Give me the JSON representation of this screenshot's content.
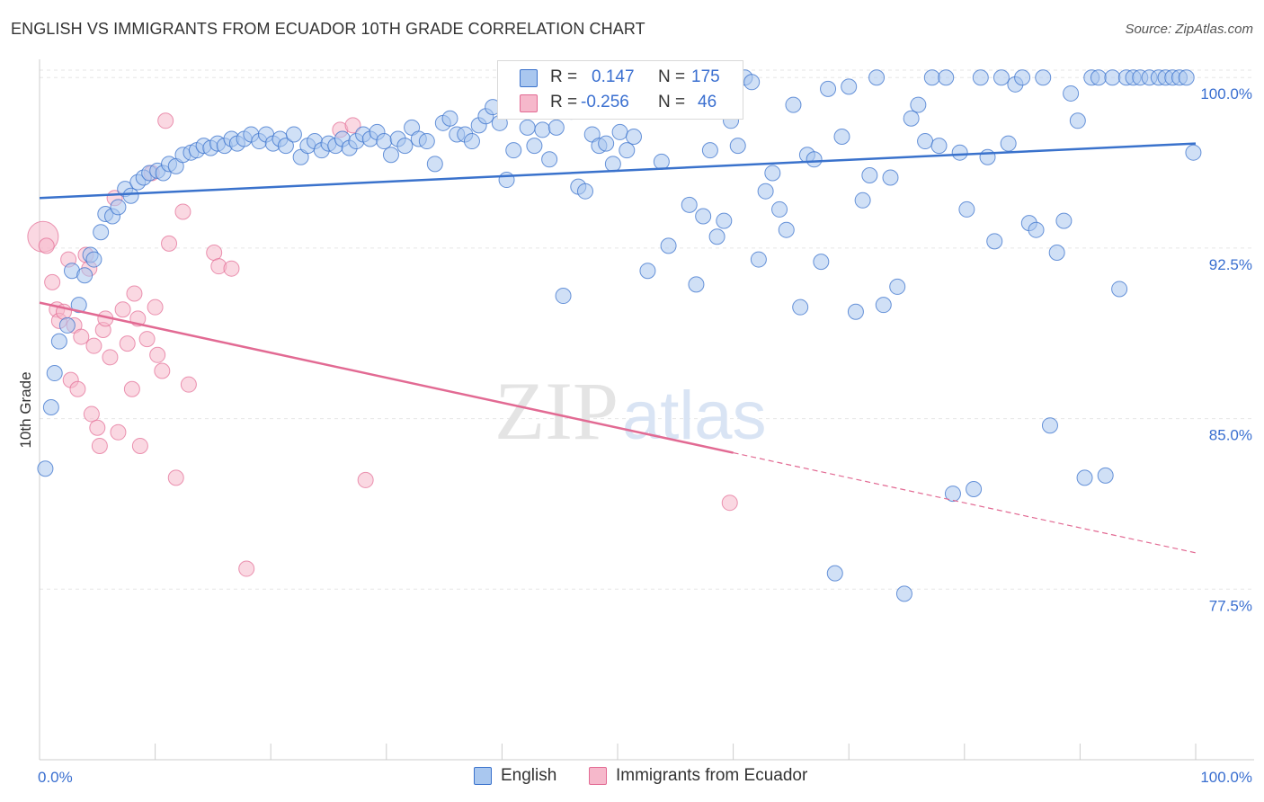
{
  "header": {
    "title": "ENGLISH VS IMMIGRANTS FROM ECUADOR 10TH GRADE CORRELATION CHART",
    "source": "Source: ZipAtlas.com"
  },
  "watermark": {
    "zip": "ZIP",
    "atlas": "atlas"
  },
  "legend": {
    "rows": [
      {
        "r_label": "R =",
        "r_value": "0.147",
        "n_label": "N =",
        "n_value": "175",
        "color": "#a9c7ef"
      },
      {
        "r_label": "R =",
        "r_value": "-0.256",
        "n_label": "N =",
        "n_value": "46",
        "color": "#f6b8cb"
      }
    ]
  },
  "bottom_legend": {
    "items": [
      {
        "label": "English",
        "color": "#a9c7ef"
      },
      {
        "label": "Immigrants from Ecuador",
        "color": "#f6b8cb"
      }
    ]
  },
  "chart_data": {
    "type": "scatter",
    "title": "ENGLISH VS IMMIGRANTS FROM ECUADOR 10TH GRADE CORRELATION CHART",
    "xlabel": "",
    "ylabel": "10th Grade",
    "xlim": [
      0,
      100
    ],
    "ylim": [
      70,
      100.8
    ],
    "x_tick_labels": [
      "0.0%",
      "100.0%"
    ],
    "y_ticks": [
      77.5,
      85.0,
      92.5,
      100.0
    ],
    "y_tick_labels": [
      "77.5%",
      "85.0%",
      "92.5%",
      "100.0%"
    ],
    "grid": true,
    "legend_position": "top-center",
    "colors": {
      "english": "#3a72cc",
      "english_fill": "#a9c7ef",
      "ecuador": "#e26a93",
      "ecuador_fill": "#f6b8cb"
    },
    "series": [
      {
        "name": "English",
        "r": 0.147,
        "n": 175,
        "trend": {
          "x": [
            0,
            100
          ],
          "y": [
            94.7,
            97.1
          ]
        },
        "points": [
          [
            0.5,
            82.8
          ],
          [
            1.0,
            85.5
          ],
          [
            1.3,
            87.0
          ],
          [
            1.7,
            88.4
          ],
          [
            2.4,
            89.1
          ],
          [
            2.8,
            91.5
          ],
          [
            3.4,
            90.0
          ],
          [
            3.9,
            91.3
          ],
          [
            4.4,
            92.2
          ],
          [
            4.7,
            92.0
          ],
          [
            5.3,
            93.2
          ],
          [
            5.7,
            94.0
          ],
          [
            6.3,
            93.9
          ],
          [
            6.8,
            94.3
          ],
          [
            7.4,
            95.1
          ],
          [
            7.9,
            94.8
          ],
          [
            8.5,
            95.4
          ],
          [
            9.0,
            95.6
          ],
          [
            9.5,
            95.8
          ],
          [
            10.2,
            95.9
          ],
          [
            10.7,
            95.8
          ],
          [
            11.2,
            96.2
          ],
          [
            11.8,
            96.1
          ],
          [
            12.4,
            96.6
          ],
          [
            13.1,
            96.7
          ],
          [
            13.6,
            96.8
          ],
          [
            14.2,
            97.0
          ],
          [
            14.8,
            96.9
          ],
          [
            15.4,
            97.1
          ],
          [
            16.0,
            97.0
          ],
          [
            16.6,
            97.3
          ],
          [
            17.1,
            97.1
          ],
          [
            17.7,
            97.3
          ],
          [
            18.3,
            97.5
          ],
          [
            19.0,
            97.2
          ],
          [
            19.6,
            97.5
          ],
          [
            20.2,
            97.1
          ],
          [
            20.8,
            97.3
          ],
          [
            21.3,
            97.0
          ],
          [
            22.0,
            97.5
          ],
          [
            22.6,
            96.5
          ],
          [
            23.2,
            97.0
          ],
          [
            23.8,
            97.2
          ],
          [
            24.4,
            96.8
          ],
          [
            25.0,
            97.1
          ],
          [
            25.6,
            97.0
          ],
          [
            26.2,
            97.3
          ],
          [
            26.8,
            96.9
          ],
          [
            27.4,
            97.2
          ],
          [
            28.0,
            97.5
          ],
          [
            28.6,
            97.3
          ],
          [
            29.2,
            97.6
          ],
          [
            29.8,
            97.2
          ],
          [
            30.4,
            96.6
          ],
          [
            31.0,
            97.3
          ],
          [
            31.6,
            97.0
          ],
          [
            32.2,
            97.8
          ],
          [
            32.8,
            97.3
          ],
          [
            33.5,
            97.2
          ],
          [
            34.2,
            96.2
          ],
          [
            34.9,
            98.0
          ],
          [
            35.5,
            98.2
          ],
          [
            36.1,
            97.5
          ],
          [
            36.8,
            97.5
          ],
          [
            37.4,
            97.2
          ],
          [
            38.0,
            97.9
          ],
          [
            38.6,
            98.3
          ],
          [
            39.2,
            98.7
          ],
          [
            39.8,
            98.0
          ],
          [
            40.4,
            95.5
          ],
          [
            41.0,
            96.8
          ],
          [
            41.6,
            98.8
          ],
          [
            42.2,
            97.8
          ],
          [
            42.8,
            97.0
          ],
          [
            43.5,
            97.7
          ],
          [
            44.1,
            96.4
          ],
          [
            44.7,
            97.8
          ],
          [
            45.3,
            90.4
          ],
          [
            46.0,
            98.5
          ],
          [
            46.6,
            95.2
          ],
          [
            47.2,
            95.0
          ],
          [
            47.8,
            97.5
          ],
          [
            48.4,
            97.0
          ],
          [
            49.0,
            97.1
          ],
          [
            49.6,
            96.2
          ],
          [
            50.2,
            97.6
          ],
          [
            50.8,
            96.8
          ],
          [
            51.4,
            97.4
          ],
          [
            52.0,
            99.2
          ],
          [
            52.6,
            91.5
          ],
          [
            53.2,
            99.0
          ],
          [
            53.8,
            96.3
          ],
          [
            54.4,
            92.6
          ],
          [
            55.0,
            99.5
          ],
          [
            55.6,
            98.8
          ],
          [
            56.2,
            94.4
          ],
          [
            56.8,
            90.9
          ],
          [
            57.4,
            93.9
          ],
          [
            58.0,
            96.8
          ],
          [
            58.6,
            93.0
          ],
          [
            59.2,
            93.7
          ],
          [
            59.8,
            98.1
          ],
          [
            60.4,
            97.0
          ],
          [
            61.0,
            100.0
          ],
          [
            61.6,
            99.8
          ],
          [
            62.2,
            92.0
          ],
          [
            62.8,
            95.0
          ],
          [
            63.4,
            95.8
          ],
          [
            64.0,
            94.2
          ],
          [
            64.6,
            93.3
          ],
          [
            65.2,
            98.8
          ],
          [
            65.8,
            89.9
          ],
          [
            66.4,
            96.6
          ],
          [
            67.0,
            96.4
          ],
          [
            67.6,
            91.9
          ],
          [
            68.2,
            99.5
          ],
          [
            68.8,
            78.2
          ],
          [
            69.4,
            97.4
          ],
          [
            70.0,
            99.6
          ],
          [
            70.6,
            89.7
          ],
          [
            71.2,
            94.6
          ],
          [
            71.8,
            95.7
          ],
          [
            72.4,
            100.0
          ],
          [
            73.0,
            90.0
          ],
          [
            73.6,
            95.6
          ],
          [
            74.2,
            90.8
          ],
          [
            74.8,
            77.3
          ],
          [
            75.4,
            98.2
          ],
          [
            76.0,
            98.8
          ],
          [
            76.6,
            97.2
          ],
          [
            77.2,
            100.0
          ],
          [
            77.8,
            97.0
          ],
          [
            78.4,
            100.0
          ],
          [
            79.0,
            81.7
          ],
          [
            79.6,
            96.7
          ],
          [
            80.2,
            94.2
          ],
          [
            80.8,
            81.9
          ],
          [
            81.4,
            100.0
          ],
          [
            82.0,
            96.5
          ],
          [
            82.6,
            92.8
          ],
          [
            83.2,
            100.0
          ],
          [
            83.8,
            97.1
          ],
          [
            84.4,
            99.7
          ],
          [
            85.0,
            100.0
          ],
          [
            85.6,
            93.6
          ],
          [
            86.2,
            93.3
          ],
          [
            86.8,
            100.0
          ],
          [
            87.4,
            84.7
          ],
          [
            88.0,
            92.3
          ],
          [
            88.6,
            93.7
          ],
          [
            89.2,
            99.3
          ],
          [
            89.8,
            98.1
          ],
          [
            90.4,
            82.4
          ],
          [
            91.0,
            100.0
          ],
          [
            91.6,
            100.0
          ],
          [
            92.2,
            82.5
          ],
          [
            92.8,
            100.0
          ],
          [
            93.4,
            90.7
          ],
          [
            94.0,
            100.0
          ],
          [
            94.6,
            100.0
          ],
          [
            95.2,
            100.0
          ],
          [
            96.0,
            100.0
          ],
          [
            96.8,
            100.0
          ],
          [
            97.4,
            100.0
          ],
          [
            98.0,
            100.0
          ],
          [
            98.6,
            100.0
          ],
          [
            99.2,
            100.0
          ],
          [
            99.8,
            96.7
          ],
          [
            42.0,
            100.0
          ],
          [
            45.0,
            100.0
          ]
        ]
      },
      {
        "name": "Immigrants from Ecuador",
        "r": -0.256,
        "n": 46,
        "trend": {
          "x": [
            0,
            60
          ],
          "y": [
            90.1,
            83.5
          ]
        },
        "trend_dashed": {
          "x": [
            60,
            100
          ],
          "y": [
            83.5,
            79.1
          ]
        },
        "points": [
          [
            0.3,
            93.0
          ],
          [
            0.6,
            92.6
          ],
          [
            1.1,
            91.0
          ],
          [
            1.5,
            89.8
          ],
          [
            1.7,
            89.3
          ],
          [
            2.1,
            89.7
          ],
          [
            2.5,
            92.0
          ],
          [
            2.7,
            86.7
          ],
          [
            3.0,
            89.1
          ],
          [
            3.3,
            86.3
          ],
          [
            3.6,
            88.6
          ],
          [
            4.0,
            92.2
          ],
          [
            4.3,
            91.6
          ],
          [
            4.5,
            85.2
          ],
          [
            4.7,
            88.2
          ],
          [
            5.0,
            84.6
          ],
          [
            5.2,
            83.8
          ],
          [
            5.5,
            88.9
          ],
          [
            5.7,
            89.4
          ],
          [
            6.1,
            87.7
          ],
          [
            6.5,
            94.7
          ],
          [
            6.8,
            84.4
          ],
          [
            7.2,
            89.8
          ],
          [
            7.6,
            88.3
          ],
          [
            8.0,
            86.3
          ],
          [
            8.2,
            90.5
          ],
          [
            8.5,
            89.4
          ],
          [
            8.7,
            83.8
          ],
          [
            9.3,
            88.5
          ],
          [
            9.7,
            95.8
          ],
          [
            10.0,
            89.9
          ],
          [
            10.2,
            87.8
          ],
          [
            10.6,
            87.1
          ],
          [
            10.9,
            98.1
          ],
          [
            11.2,
            92.7
          ],
          [
            11.8,
            82.4
          ],
          [
            12.4,
            94.1
          ],
          [
            12.9,
            86.5
          ],
          [
            15.1,
            92.3
          ],
          [
            15.5,
            91.7
          ],
          [
            16.6,
            91.6
          ],
          [
            17.9,
            78.4
          ],
          [
            26.0,
            97.7
          ],
          [
            27.1,
            97.9
          ],
          [
            28.2,
            82.3
          ],
          [
            59.7,
            81.3
          ]
        ]
      }
    ]
  }
}
